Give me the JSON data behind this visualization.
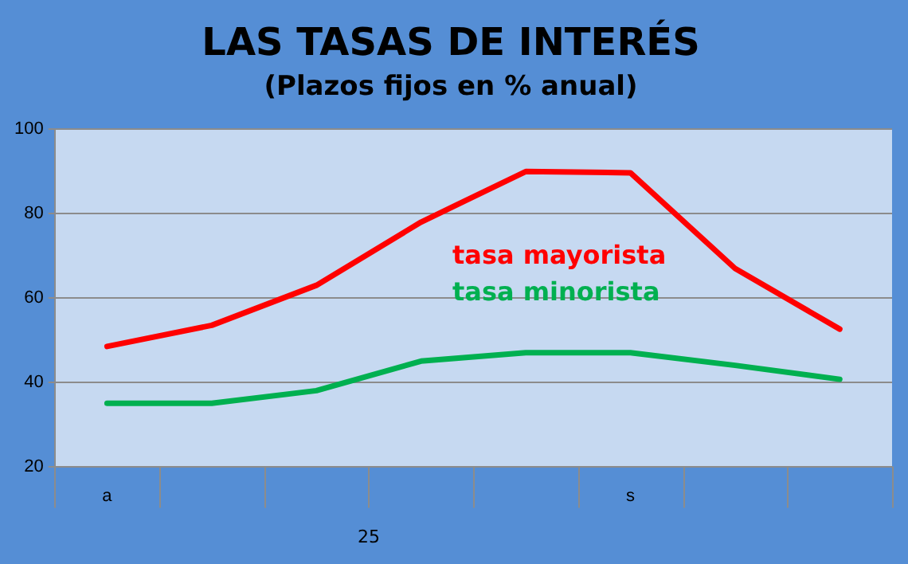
{
  "chart_data": {
    "type": "line",
    "title": "LAS TASAS DE INTERÉS",
    "subtitle": "(Plazos fijos en % anual)",
    "categories": [
      "a",
      null,
      null,
      null,
      null,
      "s",
      null,
      null
    ],
    "series": [
      {
        "name": "tasa mayorista",
        "color": "#ff0000",
        "values": [
          48.5,
          53.5,
          63,
          78,
          90,
          89.7,
          67,
          52.6
        ]
      },
      {
        "name": "tasa minorista",
        "color": "#00b050",
        "values": [
          35,
          35,
          38,
          45,
          47,
          47,
          44,
          40.7
        ]
      }
    ],
    "ylim": [
      20,
      100
    ],
    "yticks": [
      20,
      40,
      60,
      80,
      100
    ],
    "grid": "y",
    "legend": false,
    "marker": "none",
    "line_style": "solid",
    "annotations": [
      "25"
    ]
  }
}
